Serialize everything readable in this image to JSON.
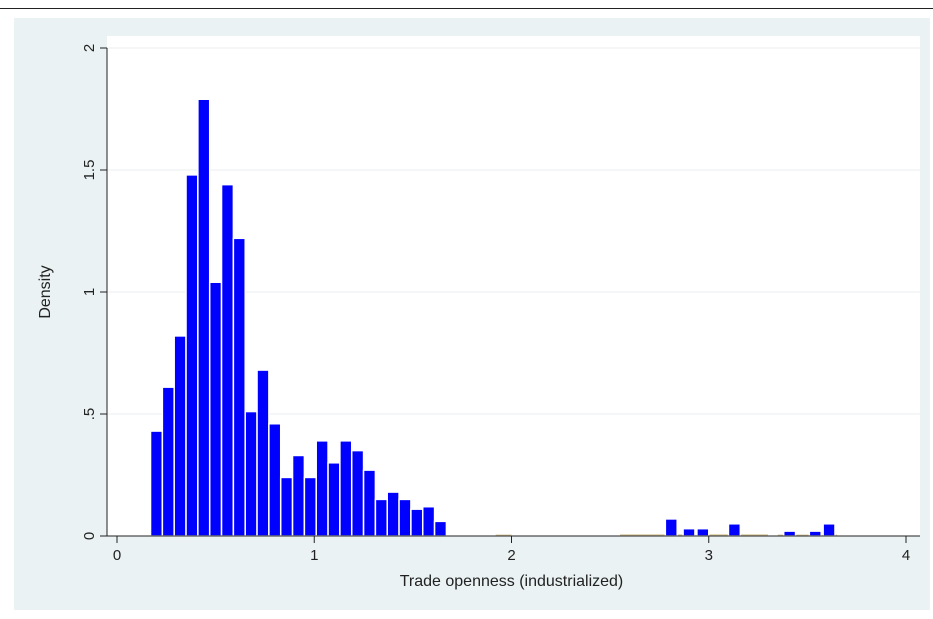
{
  "chart_data": {
    "type": "bar",
    "title": "",
    "xlabel": "Trade openness (industrialized)",
    "ylabel": "Density",
    "xlim": [
      -0.05,
      4.07
    ],
    "ylim": [
      0,
      2.05
    ],
    "x_ticks": [
      0,
      1,
      2,
      3,
      4
    ],
    "x_tick_labels": [
      "0",
      "1",
      "2",
      "3",
      "4"
    ],
    "y_ticks": [
      0,
      0.5,
      1,
      1.5,
      2
    ],
    "y_tick_labels": [
      "0",
      ".5",
      "1",
      "1.5",
      "2"
    ],
    "grid": "horizontal",
    "legend": "none",
    "bin_width": 0.06,
    "colors": {
      "plot_background": "#ffffff",
      "outer_background": "#eaf2f3",
      "bar_fill": "#0000ff",
      "bar_outline": "#ffffff",
      "secondary_fill": "#d7c79b",
      "grid": "#e9eef0",
      "axis": "#222222"
    },
    "series": [
      {
        "x_start": [
          0.17,
          0.23,
          0.29,
          0.35,
          0.41,
          0.47,
          0.53,
          0.59,
          0.65,
          0.71,
          0.77,
          0.83,
          0.89,
          0.95,
          1.01,
          1.07,
          1.13,
          1.19,
          1.25,
          1.31,
          1.37,
          1.43,
          1.49,
          1.55,
          1.61,
          1.67,
          1.73,
          1.79,
          1.85,
          2.78,
          2.87,
          2.94,
          3.1,
          3.38,
          3.51,
          3.58
        ],
        "values": [
          0.43,
          0.61,
          0.82,
          1.48,
          1.79,
          1.04,
          1.44,
          1.22,
          0.51,
          0.68,
          0.46,
          0.24,
          0.33,
          0.24,
          0.39,
          0.3,
          0.39,
          0.35,
          0.27,
          0.15,
          0.18,
          0.15,
          0.11,
          0.12,
          0.06,
          0.0,
          0.0,
          0.0,
          0.0,
          0.07,
          0.03,
          0.03,
          0.05,
          0.02,
          0.02,
          0.05
        ]
      },
      {
        "ranges": [
          [
            1.92,
            2.0
          ],
          [
            2.55,
            3.3
          ],
          [
            3.35,
            3.65
          ]
        ],
        "values": [
          0.006,
          0.007,
          0.006
        ]
      }
    ]
  }
}
